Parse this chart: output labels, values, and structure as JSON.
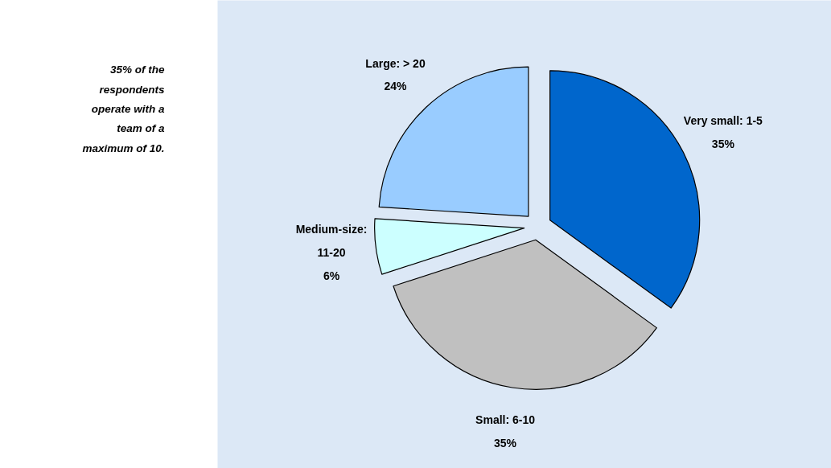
{
  "chart_data": {
    "type": "pie",
    "categories": [
      "Very small: 1-5",
      "Small: 6-10",
      "Medium-size: 11-20",
      "Large: > 20"
    ],
    "values": [
      35,
      35,
      6,
      24
    ],
    "colors": [
      "#0066cc",
      "#c0c0c0",
      "#ccffff",
      "#99ccff"
    ],
    "value_labels": [
      "35%",
      "35%",
      "6%",
      "24%"
    ],
    "annotations": [
      "35% of the respondents operate with a team of a maximum of 10."
    ]
  }
}
